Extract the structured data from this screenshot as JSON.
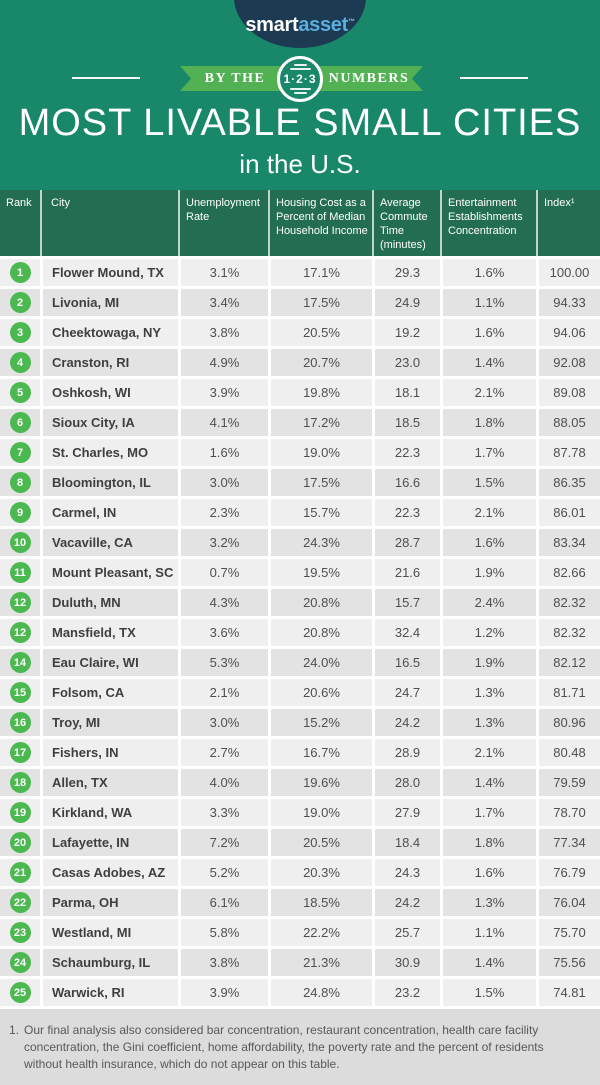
{
  "brand": {
    "smart": "smart",
    "asset": "asset",
    "trademark": "™"
  },
  "banner": {
    "left": "BY THE",
    "badge": "1·2·3",
    "right": "NUMBERS"
  },
  "title": {
    "main": "MOST LIVABLE SMALL CITIES",
    "sub": "in the U.S."
  },
  "colors": {
    "hero_green": "#19876a",
    "table_header_green": "#236e50",
    "ribbon_green": "#52b153",
    "rank_circle_green": "#4bb850",
    "logo_navy": "#1c3a52",
    "logo_asset_blue": "#5aaee0",
    "row_light": "#efefef",
    "row_dark": "#e3e3e3",
    "footnote_bg": "#dcdcdc"
  },
  "chart_data": {
    "type": "table",
    "title": "MOST LIVABLE SMALL CITIES",
    "subtitle": "in the U.S.",
    "columns": [
      "Rank",
      "City",
      "Unemployment Rate",
      "Housing Cost as a Percent of Median Household Income",
      "Average Commute Time (minutes)",
      "Entertainment Establishments Concentration",
      "Index¹"
    ],
    "rows": [
      {
        "rank": "1",
        "city": "Flower Mound, TX",
        "unemployment": "3.1%",
        "housing": "17.1%",
        "commute": "29.3",
        "entertainment": "1.6%",
        "index": "100.00"
      },
      {
        "rank": "2",
        "city": "Livonia, MI",
        "unemployment": "3.4%",
        "housing": "17.5%",
        "commute": "24.9",
        "entertainment": "1.1%",
        "index": "94.33"
      },
      {
        "rank": "3",
        "city": "Cheektowaga, NY",
        "unemployment": "3.8%",
        "housing": "20.5%",
        "commute": "19.2",
        "entertainment": "1.6%",
        "index": "94.06"
      },
      {
        "rank": "4",
        "city": "Cranston, RI",
        "unemployment": "4.9%",
        "housing": "20.7%",
        "commute": "23.0",
        "entertainment": "1.4%",
        "index": "92.08"
      },
      {
        "rank": "5",
        "city": "Oshkosh, WI",
        "unemployment": "3.9%",
        "housing": "19.8%",
        "commute": "18.1",
        "entertainment": "2.1%",
        "index": "89.08"
      },
      {
        "rank": "6",
        "city": "Sioux City, IA",
        "unemployment": "4.1%",
        "housing": "17.2%",
        "commute": "18.5",
        "entertainment": "1.8%",
        "index": "88.05"
      },
      {
        "rank": "7",
        "city": "St. Charles, MO",
        "unemployment": "1.6%",
        "housing": "19.0%",
        "commute": "22.3",
        "entertainment": "1.7%",
        "index": "87.78"
      },
      {
        "rank": "8",
        "city": "Bloomington, IL",
        "unemployment": "3.0%",
        "housing": "17.5%",
        "commute": "16.6",
        "entertainment": "1.5%",
        "index": "86.35"
      },
      {
        "rank": "9",
        "city": "Carmel, IN",
        "unemployment": "2.3%",
        "housing": "15.7%",
        "commute": "22.3",
        "entertainment": "2.1%",
        "index": "86.01"
      },
      {
        "rank": "10",
        "city": "Vacaville, CA",
        "unemployment": "3.2%",
        "housing": "24.3%",
        "commute": "28.7",
        "entertainment": "1.6%",
        "index": "83.34"
      },
      {
        "rank": "11",
        "city": "Mount Pleasant, SC",
        "unemployment": "0.7%",
        "housing": "19.5%",
        "commute": "21.6",
        "entertainment": "1.9%",
        "index": "82.66"
      },
      {
        "rank": "12",
        "city": "Duluth, MN",
        "unemployment": "4.3%",
        "housing": "20.8%",
        "commute": "15.7",
        "entertainment": "2.4%",
        "index": "82.32"
      },
      {
        "rank": "12",
        "city": "Mansfield, TX",
        "unemployment": "3.6%",
        "housing": "20.8%",
        "commute": "32.4",
        "entertainment": "1.2%",
        "index": "82.32"
      },
      {
        "rank": "14",
        "city": "Eau Claire, WI",
        "unemployment": "5.3%",
        "housing": "24.0%",
        "commute": "16.5",
        "entertainment": "1.9%",
        "index": "82.12"
      },
      {
        "rank": "15",
        "city": "Folsom, CA",
        "unemployment": "2.1%",
        "housing": "20.6%",
        "commute": "24.7",
        "entertainment": "1.3%",
        "index": "81.71"
      },
      {
        "rank": "16",
        "city": "Troy, MI",
        "unemployment": "3.0%",
        "housing": "15.2%",
        "commute": "24.2",
        "entertainment": "1.3%",
        "index": "80.96"
      },
      {
        "rank": "17",
        "city": "Fishers, IN",
        "unemployment": "2.7%",
        "housing": "16.7%",
        "commute": "28.9",
        "entertainment": "2.1%",
        "index": "80.48"
      },
      {
        "rank": "18",
        "city": "Allen, TX",
        "unemployment": "4.0%",
        "housing": "19.6%",
        "commute": "28.0",
        "entertainment": "1.4%",
        "index": "79.59"
      },
      {
        "rank": "19",
        "city": "Kirkland, WA",
        "unemployment": "3.3%",
        "housing": "19.0%",
        "commute": "27.9",
        "entertainment": "1.7%",
        "index": "78.70"
      },
      {
        "rank": "20",
        "city": "Lafayette, IN",
        "unemployment": "7.2%",
        "housing": "20.5%",
        "commute": "18.4",
        "entertainment": "1.8%",
        "index": "77.34"
      },
      {
        "rank": "21",
        "city": "Casas Adobes, AZ",
        "unemployment": "5.2%",
        "housing": "20.3%",
        "commute": "24.3",
        "entertainment": "1.6%",
        "index": "76.79"
      },
      {
        "rank": "22",
        "city": "Parma, OH",
        "unemployment": "6.1%",
        "housing": "18.5%",
        "commute": "24.2",
        "entertainment": "1.3%",
        "index": "76.04"
      },
      {
        "rank": "23",
        "city": "Westland, MI",
        "unemployment": "5.8%",
        "housing": "22.2%",
        "commute": "25.7",
        "entertainment": "1.1%",
        "index": "75.70"
      },
      {
        "rank": "24",
        "city": "Schaumburg, IL",
        "unemployment": "3.8%",
        "housing": "21.3%",
        "commute": "30.9",
        "entertainment": "1.4%",
        "index": "75.56"
      },
      {
        "rank": "25",
        "city": "Warwick, RI",
        "unemployment": "3.9%",
        "housing": "24.8%",
        "commute": "23.2",
        "entertainment": "1.5%",
        "index": "74.81"
      }
    ]
  },
  "footnote": {
    "marker": "1.",
    "text": "Our final analysis also considered bar concentration, restaurant concentration, health care facility concentration, the Gini coefficient, home affordability, the poverty rate and the percent of residents without health insurance, which do not appear on this table."
  }
}
